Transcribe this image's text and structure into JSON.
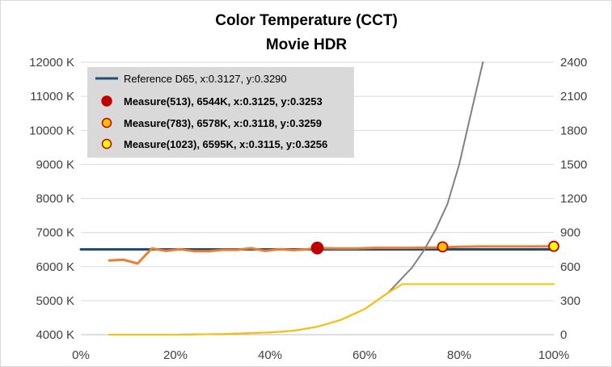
{
  "chart_data": {
    "type": "line",
    "title": "Color Temperature (CCT)",
    "subtitle": "Movie HDR",
    "xlabel": "",
    "ylabel": "",
    "xlim": [
      0,
      100
    ],
    "ylim": [
      4000,
      12000
    ],
    "y2lim": [
      0,
      2400
    ],
    "x_ticks": [
      "0%",
      "20%",
      "40%",
      "60%",
      "80%",
      "100%"
    ],
    "y_ticks": [
      "4000 K",
      "5000 K",
      "6000 K",
      "7000 K",
      "8000 K",
      "9000 K",
      "10000 K",
      "11000 K",
      "12000 K"
    ],
    "y2_ticks": [
      "0",
      "300",
      "600",
      "900",
      "1200",
      "1500",
      "1800",
      "2100",
      "2400"
    ],
    "grid": true,
    "legend_position": "top-left",
    "legend": [
      "Reference D65, x:0.3127, y:0.3290",
      "Measure(513), 6544K, x:0.3125, y:0.3253",
      "Measure(783), 6578K, x:0.3118, y:0.3259",
      "Measure(1023), 6595K, x:0.3115, y:0.3256"
    ],
    "colors": {
      "reference": "#1f4e79",
      "cct": "#ed7d31",
      "target_luminance": "#808080",
      "measured_luminance": "#ffc000",
      "marker_513": "#c00000",
      "marker_783": "#ffc000",
      "marker_1023": "#ffff00",
      "marker_outline": "#c00000"
    },
    "series": [
      {
        "axis": "left",
        "x": [
          0,
          100
        ],
        "values": [
          6504,
          6504
        ]
      },
      {
        "axis": "left",
        "x": [
          6,
          9,
          12,
          15,
          18,
          21,
          24,
          27,
          30,
          33,
          36,
          39,
          42,
          45,
          48,
          50,
          54,
          58,
          62,
          66,
          70,
          75,
          80,
          85,
          90,
          95,
          100
        ],
        "values": [
          6180,
          6200,
          6090,
          6530,
          6460,
          6510,
          6450,
          6450,
          6490,
          6490,
          6540,
          6460,
          6510,
          6480,
          6510,
          6544,
          6530,
          6530,
          6550,
          6550,
          6550,
          6560,
          6580,
          6590,
          6590,
          6590,
          6595
        ]
      },
      {
        "axis": "right",
        "x": [
          6,
          20,
          30,
          40,
          45,
          50,
          55,
          60,
          65,
          70,
          72.5,
          75,
          77.5,
          80,
          82.5,
          85
        ],
        "values": [
          0,
          0,
          5,
          20,
          35,
          70,
          130,
          225,
          370,
          590,
          740,
          925,
          1150,
          1500,
          1950,
          2400
        ]
      },
      {
        "axis": "right",
        "x": [
          6,
          20,
          30,
          40,
          45,
          50,
          55,
          60,
          65,
          68,
          80,
          90,
          100
        ],
        "values": [
          0,
          0,
          5,
          20,
          35,
          70,
          130,
          225,
          370,
          445,
          445,
          445,
          445
        ]
      }
    ],
    "measures": [
      {
        "x": 50,
        "value": 6544
      },
      {
        "x": 76.5,
        "value": 6578
      },
      {
        "x": 100,
        "value": 6595
      }
    ]
  }
}
